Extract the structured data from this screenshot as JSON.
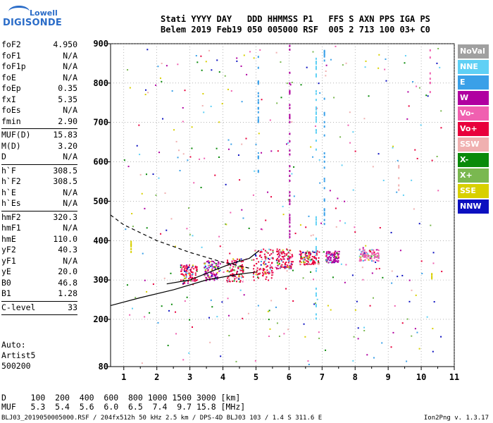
{
  "logo": {
    "line1": "Lowell",
    "line2": "DIGISONDE"
  },
  "header": {
    "line1": "Stati YYYY DAY   DDD HHMMSS P1   FFS S AXN PPS IGA PS",
    "line2": "Belem 2019 Feb19 050 005000 RSF  005 2 713 100 03+ C0"
  },
  "params": [
    {
      "k": "foF2",
      "v": "4.950"
    },
    {
      "k": "foF1",
      "v": "N/A"
    },
    {
      "k": "foF1p",
      "v": "N/A"
    },
    {
      "k": "foE",
      "v": "N/A"
    },
    {
      "k": "foEp",
      "v": "0.35"
    },
    {
      "k": "fxI",
      "v": "5.35"
    },
    {
      "k": "foEs",
      "v": "N/A"
    },
    {
      "k": "fmin",
      "v": "2.90"
    },
    {
      "sep": true
    },
    {
      "k": "MUF(D)",
      "v": "15.83"
    },
    {
      "k": "M(D)",
      "v": "3.20"
    },
    {
      "k": "D",
      "v": "N/A"
    },
    {
      "sep": true
    },
    {
      "k": "h`F",
      "v": "308.5"
    },
    {
      "k": "h`F2",
      "v": "308.5"
    },
    {
      "k": "h`E",
      "v": "N/A"
    },
    {
      "k": "h`Es",
      "v": "N/A"
    },
    {
      "sep": true
    },
    {
      "k": "hmF2",
      "v": "320.3"
    },
    {
      "k": "hmF1",
      "v": "N/A"
    },
    {
      "k": "hmE",
      "v": "110.0"
    },
    {
      "k": "yF2",
      "v": "40.3"
    },
    {
      "k": "yF1",
      "v": "N/A"
    },
    {
      "k": "yE",
      "v": "20.0"
    },
    {
      "k": "B0",
      "v": "46.8"
    },
    {
      "k": "B1",
      "v": "1.28"
    },
    {
      "sep": true
    },
    {
      "k": "C-level",
      "v": "33"
    },
    {
      "sep": true
    }
  ],
  "auto": {
    "line1": "Auto:",
    "line2": "Artist5",
    "line3": "500200"
  },
  "mufTable": {
    "line1": "D     100  200  400  600  800 1000 1500 3000 [km]",
    "line2": "MUF   5.3  5.4  5.6  6.0  6.5  7.4  9.7 15.8 [MHz]"
  },
  "footer": {
    "left": "BLJ03_2019050005000.RSF / 204fx512h 50 kHz 2.5 km / DPS-4D BLJ03 103 / 1.4 S 311.6 E",
    "right": "Ion2Png v. 1.3.17"
  },
  "legend": [
    {
      "label": "NoVal",
      "color": "#a0a0a0"
    },
    {
      "label": "NNE",
      "color": "#5fd0f5"
    },
    {
      "label": "E",
      "color": "#3aa0e8"
    },
    {
      "label": "W",
      "color": "#b000a0"
    },
    {
      "label": "Vo-",
      "color": "#f060b0"
    },
    {
      "label": "Vo+",
      "color": "#e8003c"
    },
    {
      "label": "SSW",
      "color": "#f0b0b0"
    },
    {
      "label": "X-",
      "color": "#0a8a0a"
    },
    {
      "label": "X+",
      "color": "#7ab850"
    },
    {
      "label": "SSE",
      "color": "#d8d000"
    },
    {
      "label": "NNW",
      "color": "#0c10c0"
    }
  ],
  "chart_data": {
    "type": "scatter",
    "title": "",
    "xlabel": "",
    "ylabel": "",
    "xlim": [
      0.6,
      11
    ],
    "ylim": [
      80,
      900
    ],
    "xticks": [
      1,
      2,
      3,
      4,
      5,
      6,
      7,
      8,
      9,
      10,
      11
    ],
    "yticks": [
      80,
      200,
      300,
      400,
      500,
      600,
      700,
      800,
      900
    ],
    "grid": "dotted",
    "profile_solid": {
      "x": [
        0.6,
        1.5,
        2.5,
        3.5,
        4.5,
        5.0
      ],
      "y": [
        235,
        255,
        275,
        300,
        315,
        320
      ]
    },
    "profile_x_trace": {
      "x": [
        2.3,
        3.0,
        3.6,
        4.2,
        4.8,
        5.1
      ],
      "y": [
        290,
        300,
        320,
        340,
        355,
        375
      ]
    },
    "profile_dashed": {
      "x": [
        0.6,
        1.0,
        2.0,
        3.0,
        4.0,
        4.8
      ],
      "y": [
        465,
        440,
        400,
        370,
        345,
        330
      ]
    },
    "trace_clusters": [
      {
        "x": [
          2.7,
          3.2
        ],
        "y": [
          290,
          340
        ],
        "color": "#e8003c"
      },
      {
        "x": [
          3.4,
          3.9
        ],
        "y": [
          300,
          350
        ],
        "color": "#b000a0"
      },
      {
        "x": [
          4.1,
          4.6
        ],
        "y": [
          295,
          355
        ],
        "color": "#e8003c"
      },
      {
        "x": [
          4.9,
          5.5
        ],
        "y": [
          300,
          380
        ],
        "color": "#e8003c"
      },
      {
        "x": [
          5.6,
          6.1
        ],
        "y": [
          330,
          380
        ],
        "color": "#e8003c"
      },
      {
        "x": [
          6.3,
          6.9
        ],
        "y": [
          340,
          375
        ],
        "color": "#e8003c"
      },
      {
        "x": [
          7.1,
          7.5
        ],
        "y": [
          345,
          375
        ],
        "color": "#b000a0"
      },
      {
        "x": [
          8.1,
          8.7
        ],
        "y": [
          350,
          380
        ],
        "color": "#f060b0"
      }
    ],
    "vertical_streaks": [
      {
        "x": 1.2,
        "y": [
          360,
          400
        ],
        "color": "#d8d000"
      },
      {
        "x": 5.05,
        "y": [
          560,
          880
        ],
        "color": "#3aa0e8"
      },
      {
        "x": 6.0,
        "y": [
          330,
          900
        ],
        "color": "#b000a0"
      },
      {
        "x": 6.8,
        "y": [
          200,
          880
        ],
        "color": "#5fd0f5"
      },
      {
        "x": 7.05,
        "y": [
          420,
          900
        ],
        "color": "#3aa0e8"
      },
      {
        "x": 9.3,
        "y": [
          530,
          600
        ],
        "color": "#f0b0b0"
      },
      {
        "x": 10.25,
        "y": [
          770,
          890
        ],
        "color": "#f060b0"
      },
      {
        "x": 10.3,
        "y": [
          295,
          320
        ],
        "color": "#d8d000"
      }
    ]
  }
}
